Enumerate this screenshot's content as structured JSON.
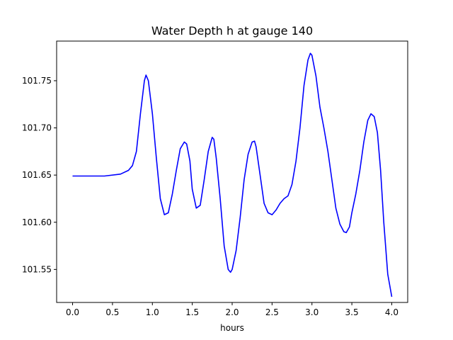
{
  "chart_data": {
    "type": "line",
    "title": "Water Depth h at gauge 140",
    "xlabel": "hours",
    "ylabel": "",
    "xlim": [
      -0.2,
      4.2
    ],
    "ylim": [
      101.515,
      101.792
    ],
    "xticks": [
      0.0,
      0.5,
      1.0,
      1.5,
      2.0,
      2.5,
      3.0,
      3.5,
      4.0
    ],
    "xtick_labels": [
      "0.0",
      "0.5",
      "1.0",
      "1.5",
      "2.0",
      "2.5",
      "3.0",
      "3.5",
      "4.0"
    ],
    "yticks": [
      101.55,
      101.6,
      101.65,
      101.7,
      101.75
    ],
    "ytick_labels": [
      "101.55",
      "101.60",
      "101.65",
      "101.70",
      "101.75"
    ],
    "grid": false,
    "series": [
      {
        "color": "#0000ff",
        "x": [
          0.0,
          0.2,
          0.4,
          0.6,
          0.7,
          0.75,
          0.8,
          0.85,
          0.9,
          0.92,
          0.95,
          1.0,
          1.05,
          1.1,
          1.15,
          1.2,
          1.25,
          1.3,
          1.35,
          1.4,
          1.43,
          1.47,
          1.5,
          1.55,
          1.6,
          1.65,
          1.7,
          1.75,
          1.77,
          1.8,
          1.85,
          1.9,
          1.95,
          1.98,
          2.0,
          2.05,
          2.1,
          2.15,
          2.2,
          2.25,
          2.28,
          2.3,
          2.35,
          2.4,
          2.45,
          2.5,
          2.55,
          2.6,
          2.65,
          2.7,
          2.75,
          2.8,
          2.85,
          2.9,
          2.95,
          2.98,
          3.0,
          3.05,
          3.1,
          3.15,
          3.2,
          3.25,
          3.3,
          3.35,
          3.4,
          3.43,
          3.47,
          3.5,
          3.55,
          3.6,
          3.65,
          3.7,
          3.74,
          3.78,
          3.82,
          3.86,
          3.9,
          3.95,
          4.0
        ],
        "y": [
          101.649,
          101.649,
          101.649,
          101.651,
          101.655,
          101.66,
          101.675,
          101.715,
          101.75,
          101.756,
          101.75,
          101.715,
          101.668,
          101.625,
          101.608,
          101.61,
          101.63,
          101.655,
          101.678,
          101.685,
          101.683,
          101.665,
          101.635,
          101.615,
          101.618,
          101.645,
          101.675,
          101.69,
          101.688,
          101.668,
          101.625,
          101.575,
          101.55,
          101.547,
          101.55,
          101.57,
          101.605,
          101.645,
          101.672,
          101.685,
          101.686,
          101.68,
          101.65,
          101.62,
          101.61,
          101.608,
          101.613,
          101.62,
          101.625,
          101.628,
          101.64,
          101.665,
          101.7,
          101.745,
          101.772,
          101.779,
          101.777,
          101.755,
          101.722,
          101.7,
          101.675,
          101.645,
          101.615,
          101.598,
          101.59,
          101.589,
          101.595,
          101.61,
          101.63,
          101.655,
          101.685,
          101.708,
          101.715,
          101.712,
          101.695,
          101.655,
          101.6,
          101.545,
          101.521
        ]
      }
    ]
  }
}
